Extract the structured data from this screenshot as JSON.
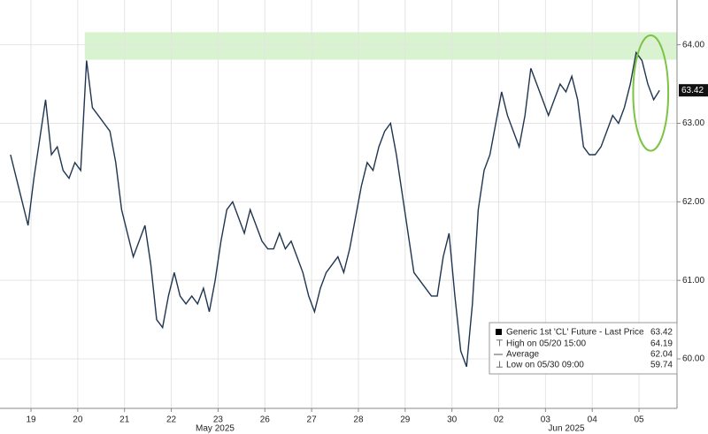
{
  "chart_data": {
    "type": "line",
    "x": [
      0,
      1,
      2,
      3,
      4,
      5,
      6,
      7,
      8,
      9,
      10,
      11,
      12,
      13,
      14,
      15,
      16,
      17,
      18,
      19,
      20,
      21,
      22,
      23,
      24,
      25,
      26,
      27,
      28,
      29,
      30,
      31,
      32,
      33,
      34,
      35,
      36,
      37,
      38,
      39,
      40,
      41,
      42,
      43,
      44,
      45,
      46,
      47,
      48,
      49,
      50,
      51,
      52,
      53,
      54,
      55,
      56,
      57,
      58,
      59,
      60,
      61,
      62,
      63,
      64,
      65,
      66,
      67,
      68,
      69,
      70,
      71,
      72,
      73,
      74,
      75,
      76,
      77,
      78,
      79,
      80,
      81,
      82,
      83,
      84,
      85,
      86,
      87,
      88,
      89,
      90,
      91,
      92,
      93,
      94,
      95,
      96,
      97,
      98,
      99,
      100,
      101,
      102,
      103,
      104,
      105,
      106,
      107,
      108,
      109,
      110,
      111
    ],
    "series": [
      {
        "color": "#1f3550",
        "values": [
          62.6,
          62.3,
          62.0,
          61.7,
          62.3,
          62.8,
          63.3,
          62.6,
          62.7,
          62.4,
          62.3,
          62.5,
          62.4,
          63.8,
          63.2,
          63.1,
          63.0,
          62.9,
          62.5,
          61.9,
          61.6,
          61.3,
          61.5,
          61.7,
          61.2,
          60.5,
          60.4,
          60.8,
          61.1,
          60.8,
          60.7,
          60.8,
          60.7,
          60.9,
          60.6,
          61.0,
          61.5,
          61.9,
          62.0,
          61.8,
          61.6,
          61.9,
          61.7,
          61.5,
          61.4,
          61.4,
          61.6,
          61.4,
          61.5,
          61.3,
          61.1,
          60.8,
          60.6,
          60.9,
          61.1,
          61.2,
          61.3,
          61.1,
          61.4,
          61.8,
          62.2,
          62.5,
          62.4,
          62.7,
          62.9,
          63.0,
          62.6,
          62.1,
          61.6,
          61.1,
          61.0,
          60.9,
          60.8,
          60.8,
          61.3,
          61.6,
          60.8,
          60.1,
          59.9,
          60.7,
          61.9,
          62.4,
          62.6,
          63.0,
          63.4,
          63.1,
          62.9,
          62.7,
          63.1,
          63.7,
          63.5,
          63.3,
          63.1,
          63.3,
          63.5,
          63.4,
          63.6,
          63.3,
          62.7,
          62.6,
          62.6,
          62.7,
          62.9,
          63.1,
          63.0,
          63.2,
          63.5,
          63.9,
          63.8,
          63.5,
          63.3,
          63.42
        ]
      }
    ],
    "xlim": [
      -1.8,
      114
    ],
    "ylim": [
      59.37,
      64.57
    ],
    "xticks": [
      {
        "value": 3.5,
        "label": "19"
      },
      {
        "value": 11.5,
        "label": "20"
      },
      {
        "value": 19.5,
        "label": "21"
      },
      {
        "value": 27.5,
        "label": "22"
      },
      {
        "value": 35.5,
        "label": "23"
      },
      {
        "value": 43.5,
        "label": "26"
      },
      {
        "value": 51.5,
        "label": "27"
      },
      {
        "value": 59.5,
        "label": "28"
      },
      {
        "value": 67.5,
        "label": "29"
      },
      {
        "value": 75.5,
        "label": "30"
      },
      {
        "value": 83.5,
        "label": "02"
      },
      {
        "value": 91.5,
        "label": "03"
      },
      {
        "value": 99.5,
        "label": "04"
      },
      {
        "value": 107.5,
        "label": "05"
      }
    ],
    "yticks": [
      {
        "value": 60,
        "label": "60.00"
      },
      {
        "value": 61,
        "label": "61.00"
      },
      {
        "value": 62,
        "label": "62.00"
      },
      {
        "value": 63,
        "label": "63.00"
      },
      {
        "value": 64,
        "label": "64.00"
      }
    ],
    "month_labels": [
      "May 2025",
      "Jun 2025"
    ],
    "grid": true,
    "highlight_band": {
      "x": [
        12.7,
        114
      ],
      "y": [
        63.81,
        64.16
      ],
      "color": "#d9f2d0"
    },
    "highlight_ellipse": {
      "x": [
        106.5,
        112.5
      ],
      "y": [
        62.65,
        64.12
      ],
      "color": "#7cc444"
    },
    "legend": [
      {
        "label": "Generic 1st 'CL' Future - Last Price",
        "value": 63.42
      },
      {
        "label": "High on 05/20 15:00",
        "value": 64.19
      },
      {
        "label": "Average",
        "value": 62.04
      },
      {
        "label": "Low on 05/30 09:00",
        "value": 59.74
      }
    ]
  }
}
